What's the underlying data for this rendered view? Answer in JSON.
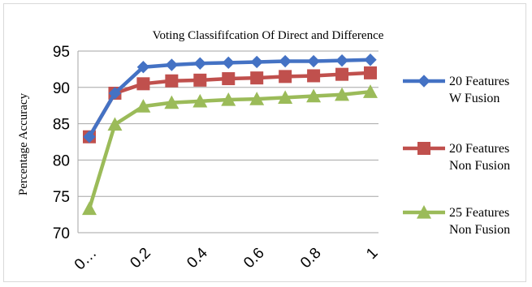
{
  "chart_data": {
    "type": "line",
    "title": "Voting Classififcation Of Direct and Difference",
    "xlabel": "",
    "ylabel": "Percentage Accuracy",
    "x": [
      0.01,
      0.1,
      0.2,
      0.3,
      0.4,
      0.5,
      0.6,
      0.7,
      0.8,
      0.9,
      1.0
    ],
    "xtick_labels": [
      "0…",
      "0.2",
      "0.4",
      "0.6",
      "0.8",
      "1"
    ],
    "xtick_values": [
      0.01,
      0.2,
      0.4,
      0.6,
      0.8,
      1.0
    ],
    "xlim": [
      0.01,
      1.0
    ],
    "ylim": [
      70,
      95
    ],
    "yticks": [
      70,
      75,
      80,
      85,
      90,
      95
    ],
    "grid": "horizontal",
    "legend_position": "right",
    "series": [
      {
        "name": "20 Features W Fusion",
        "legend_lines": [
          "20 Features",
          "W Fusion"
        ],
        "color": "#4472c4",
        "marker": "diamond",
        "values": [
          83.2,
          89.2,
          92.8,
          93.1,
          93.3,
          93.4,
          93.5,
          93.6,
          93.6,
          93.7,
          93.8
        ]
      },
      {
        "name": "20 Features Non Fusion",
        "legend_lines": [
          "20 Features",
          "Non Fusion"
        ],
        "color": "#c0504d",
        "marker": "square",
        "values": [
          83.2,
          89.2,
          90.5,
          90.9,
          91.0,
          91.2,
          91.3,
          91.5,
          91.6,
          91.8,
          92.0
        ]
      },
      {
        "name": "25 Features Non Fusion",
        "legend_lines": [
          "25 Features",
          "Non Fusion"
        ],
        "color": "#9bbb59",
        "marker": "triangle",
        "values": [
          73.3,
          84.9,
          87.4,
          87.9,
          88.1,
          88.3,
          88.4,
          88.6,
          88.8,
          89.0,
          89.4
        ]
      }
    ]
  }
}
